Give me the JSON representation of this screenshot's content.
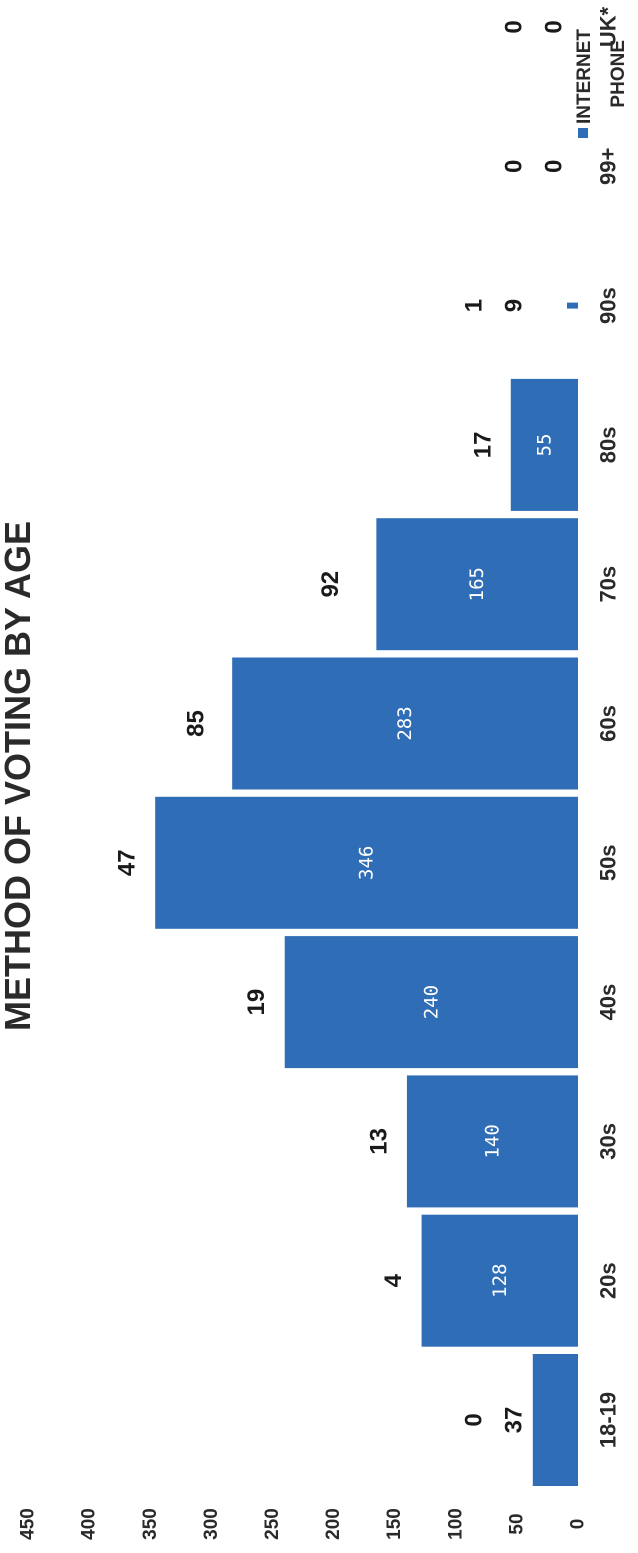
{
  "chart_data": {
    "type": "bar",
    "title": "METHOD OF VOTING BY AGE",
    "categories": [
      "18-19",
      "20s",
      "30s",
      "40s",
      "50s",
      "60s",
      "70s",
      "80s",
      "90s",
      "99+",
      "UK*"
    ],
    "series": [
      {
        "name": "PHONE",
        "values": [
          0,
          4,
          13,
          19,
          47,
          85,
          92,
          17,
          1,
          0,
          0
        ]
      },
      {
        "name": "INTERNET",
        "values": [
          37,
          128,
          140,
          240,
          346,
          283,
          165,
          55,
          9,
          0,
          0
        ],
        "color": "#2f6db6"
      }
    ],
    "yticks": [
      0,
      50,
      100,
      150,
      200,
      250,
      300,
      350,
      400,
      450
    ],
    "ylim": [
      0,
      450
    ],
    "orientation": "rotated-90-ccw",
    "legend": "top-right"
  }
}
